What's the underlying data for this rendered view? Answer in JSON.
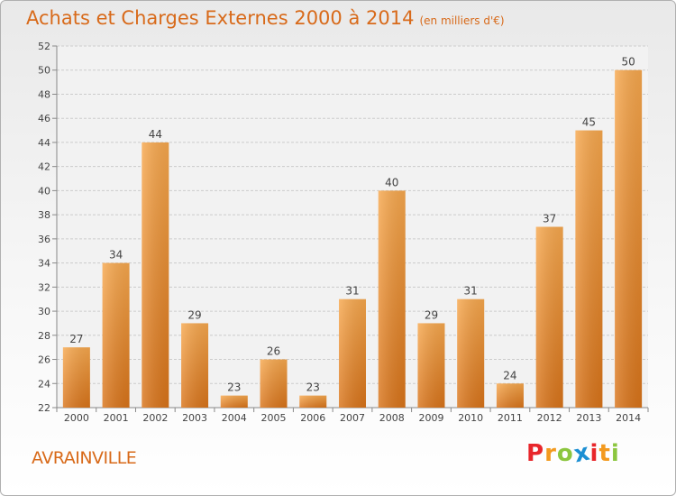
{
  "header": {
    "title": "Achats et Charges Externes 2000 à 2014",
    "unit": "(en milliers d'€)"
  },
  "footer": {
    "city": "AVRAINVILLE",
    "logo_letters": [
      "P",
      "r",
      "o",
      "x",
      "i",
      "t",
      "i"
    ],
    "logo_colors": [
      "#e8262b",
      "#f39a1f",
      "#8cc63f",
      "#1c8fd3",
      "#e8262b",
      "#f39a1f",
      "#8cc63f"
    ]
  },
  "colors": {
    "bar_light": "#f7a84e",
    "bar_dark": "#d9741a",
    "title": "#d86a1a",
    "grid": "#cccccc"
  },
  "chart_data": {
    "type": "bar",
    "categories": [
      "2000",
      "2001",
      "2002",
      "2003",
      "2004",
      "2005",
      "2006",
      "2007",
      "2008",
      "2009",
      "2010",
      "2011",
      "2012",
      "2013",
      "2014"
    ],
    "values": [
      27,
      34,
      44,
      29,
      23,
      26,
      23,
      31,
      40,
      29,
      31,
      24,
      37,
      45,
      50
    ],
    "ylim": [
      22,
      52
    ],
    "yticks": [
      22,
      24,
      26,
      28,
      30,
      32,
      34,
      36,
      38,
      40,
      42,
      44,
      46,
      48,
      50,
      52
    ],
    "grid": true,
    "data_labels": true
  }
}
